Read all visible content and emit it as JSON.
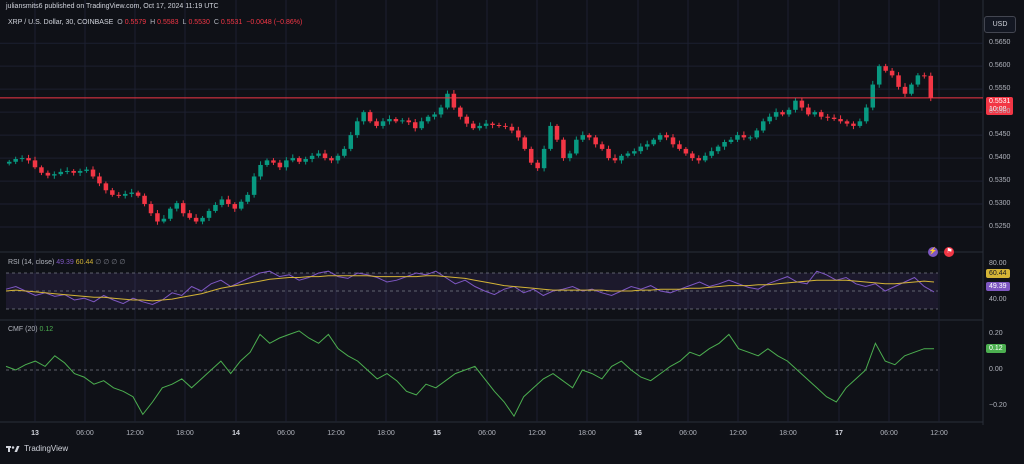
{
  "header": {
    "published": "juliansmits6 published on TradingView.com, Oct 17, 2024 11:19 UTC"
  },
  "symbol": {
    "title": "XRP / U.S. Dollar, 30, COINBASE",
    "o_label": "O",
    "o": "0.5579",
    "h_label": "H",
    "h": "0.5583",
    "l_label": "L",
    "l": "0.5530",
    "c_label": "C",
    "c": "0.5531",
    "change": "−0.0048 (−0.86%)"
  },
  "currency_button": "USD",
  "price_tag": {
    "value": "0.5531",
    "countdown": "10:08"
  },
  "rsi_legend": {
    "label": "RSI (14, close)",
    "rsi": "49.39",
    "ma": "60.44",
    "placeholders": "∅ ∅ ∅ ∅"
  },
  "rsi_tags": {
    "ma": "60.44",
    "rsi": "49.39"
  },
  "cmf_legend": {
    "label": "CMF (20)",
    "value": "0.12"
  },
  "cmf_tag": "0.12",
  "footer": {
    "brand": "TradingView"
  },
  "colors": {
    "up": "#089981",
    "down": "#f23645",
    "rsi": "#7e57c2",
    "rsi_ma": "#d4b436",
    "cmf": "#4caf50",
    "bg": "#0f1117"
  },
  "chart_data": [
    {
      "type": "candlestick",
      "title": "XRP / U.S. Dollar, 30, COINBASE",
      "ylim": [
        0.52,
        0.567
      ],
      "y_ticks": [
        "0.5650",
        "0.5600",
        "0.5550",
        "0.5500",
        "0.5450",
        "0.5400",
        "0.5350",
        "0.5300",
        "0.5250"
      ],
      "x_ticks": [
        "13",
        "06:00",
        "12:00",
        "18:00",
        "14",
        "06:00",
        "12:00",
        "18:00",
        "15",
        "06:00",
        "12:00",
        "18:00",
        "16",
        "06:00",
        "12:00",
        "18:00",
        "17",
        "06:00",
        "12:00"
      ],
      "day_ticks": [
        "13",
        "14",
        "15",
        "16",
        "17"
      ],
      "close_series": [
        0.5392,
        0.5398,
        0.54,
        0.5395,
        0.538,
        0.5368,
        0.5362,
        0.5365,
        0.537,
        0.5372,
        0.5368,
        0.5372,
        0.5375,
        0.536,
        0.5345,
        0.533,
        0.532,
        0.5318,
        0.5322,
        0.5325,
        0.5318,
        0.53,
        0.528,
        0.5262,
        0.5268,
        0.529,
        0.5302,
        0.528,
        0.527,
        0.5262,
        0.527,
        0.5285,
        0.5298,
        0.531,
        0.53,
        0.529,
        0.5305,
        0.532,
        0.536,
        0.5385,
        0.5395,
        0.539,
        0.538,
        0.5395,
        0.54,
        0.5392,
        0.5398,
        0.5405,
        0.541,
        0.54,
        0.5395,
        0.5405,
        0.542,
        0.545,
        0.548,
        0.55,
        0.548,
        0.547,
        0.548,
        0.5485,
        0.548,
        0.5482,
        0.5478,
        0.5465,
        0.548,
        0.549,
        0.5495,
        0.551,
        0.554,
        0.551,
        0.549,
        0.5475,
        0.5465,
        0.547,
        0.5475,
        0.5472,
        0.547,
        0.5468,
        0.546,
        0.5445,
        0.542,
        0.539,
        0.5378,
        0.542,
        0.547,
        0.544,
        0.54,
        0.541,
        0.544,
        0.545,
        0.5445,
        0.543,
        0.542,
        0.54,
        0.5395,
        0.5405,
        0.541,
        0.5415,
        0.5425,
        0.543,
        0.544,
        0.545,
        0.5445,
        0.543,
        0.542,
        0.541,
        0.54,
        0.5395,
        0.5405,
        0.5415,
        0.5425,
        0.5435,
        0.544,
        0.545,
        0.5445,
        0.5445,
        0.546,
        0.548,
        0.549,
        0.55,
        0.5495,
        0.5505,
        0.5525,
        0.551,
        0.5495,
        0.55,
        0.549,
        0.5488,
        0.5485,
        0.548,
        0.5475,
        0.547,
        0.548,
        0.551,
        0.556,
        0.56,
        0.559,
        0.558,
        0.5555,
        0.554,
        0.556,
        0.558,
        0.5579,
        0.5531
      ],
      "last_price": 0.5531
    },
    {
      "type": "line",
      "title": "RSI (14, close)",
      "ylim": [
        20,
        90
      ],
      "y_ticks": [
        "80.00",
        "40.00"
      ],
      "bands": [
        70,
        50,
        30
      ],
      "series": [
        {
          "name": "RSI",
          "values": [
            52,
            55,
            50,
            45,
            48,
            44,
            46,
            40,
            42,
            38,
            45,
            40,
            36,
            42,
            38,
            35,
            40,
            48,
            45,
            55,
            50,
            58,
            62,
            55,
            60,
            65,
            70,
            72,
            66,
            68,
            62,
            65,
            70,
            72,
            66,
            64,
            70,
            68,
            65,
            60,
            62,
            66,
            70,
            68,
            72,
            65,
            58,
            62,
            55,
            50,
            46,
            52,
            55,
            48,
            52,
            45,
            50,
            52,
            55,
            50,
            52,
            48,
            45,
            50,
            55,
            52,
            56,
            50,
            48,
            52,
            56,
            60,
            55,
            58,
            62,
            58,
            54,
            52,
            58,
            62,
            66,
            60,
            58,
            72,
            68,
            62,
            65,
            58,
            55,
            58,
            50,
            55,
            60,
            65,
            55,
            49
          ]
        },
        {
          "name": "RSI-MA",
          "values": [
            50,
            51,
            50,
            49,
            48,
            47,
            46,
            45,
            44,
            43,
            43,
            42,
            41,
            40,
            40,
            39,
            40,
            41,
            43,
            45,
            47,
            50,
            53,
            55,
            57,
            59,
            61,
            63,
            64,
            65,
            65,
            66,
            66,
            67,
            67,
            67,
            67,
            67,
            66,
            66,
            66,
            66,
            66,
            67,
            67,
            66,
            65,
            64,
            62,
            60,
            58,
            56,
            55,
            54,
            53,
            52,
            51,
            51,
            51,
            51,
            51,
            51,
            50,
            50,
            50,
            51,
            51,
            52,
            52,
            52,
            53,
            53,
            54,
            55,
            56,
            56,
            56,
            57,
            57,
            58,
            59,
            60,
            61,
            62,
            62,
            62,
            62,
            61,
            60,
            59,
            58,
            58,
            59,
            60,
            61,
            60
          ]
        }
      ]
    },
    {
      "type": "line",
      "title": "CMF (20)",
      "ylim": [
        -0.27,
        0.27
      ],
      "y_ticks": [
        "0.20",
        "0.00",
        "−0.20"
      ],
      "series": [
        {
          "name": "CMF",
          "values": [
            0.02,
            0.0,
            0.03,
            0.05,
            0.02,
            0.08,
            0.04,
            -0.02,
            -0.04,
            -0.08,
            -0.06,
            -0.1,
            -0.12,
            -0.15,
            -0.25,
            -0.18,
            -0.1,
            -0.08,
            -0.05,
            -0.1,
            -0.05,
            0.0,
            0.05,
            -0.02,
            0.05,
            0.1,
            0.2,
            0.15,
            0.18,
            0.2,
            0.22,
            0.18,
            0.15,
            0.2,
            0.12,
            0.08,
            0.05,
            0.0,
            -0.05,
            -0.02,
            -0.06,
            -0.12,
            -0.14,
            -0.08,
            -0.1,
            -0.06,
            -0.02,
            0.0,
            0.02,
            -0.05,
            -0.12,
            -0.18,
            -0.26,
            -0.15,
            -0.1,
            -0.05,
            -0.02,
            -0.06,
            -0.1,
            0.0,
            -0.02,
            -0.05,
            0.02,
            0.05,
            0.0,
            -0.04,
            -0.06,
            -0.02,
            0.02,
            0.05,
            0.1,
            0.08,
            0.12,
            0.15,
            0.2,
            0.12,
            0.1,
            0.08,
            0.12,
            0.08,
            0.05,
            0.0,
            -0.05,
            -0.1,
            -0.15,
            -0.18,
            -0.1,
            -0.05,
            0.0,
            0.15,
            0.05,
            0.03,
            0.08,
            0.1,
            0.12,
            0.12
          ]
        }
      ]
    }
  ]
}
